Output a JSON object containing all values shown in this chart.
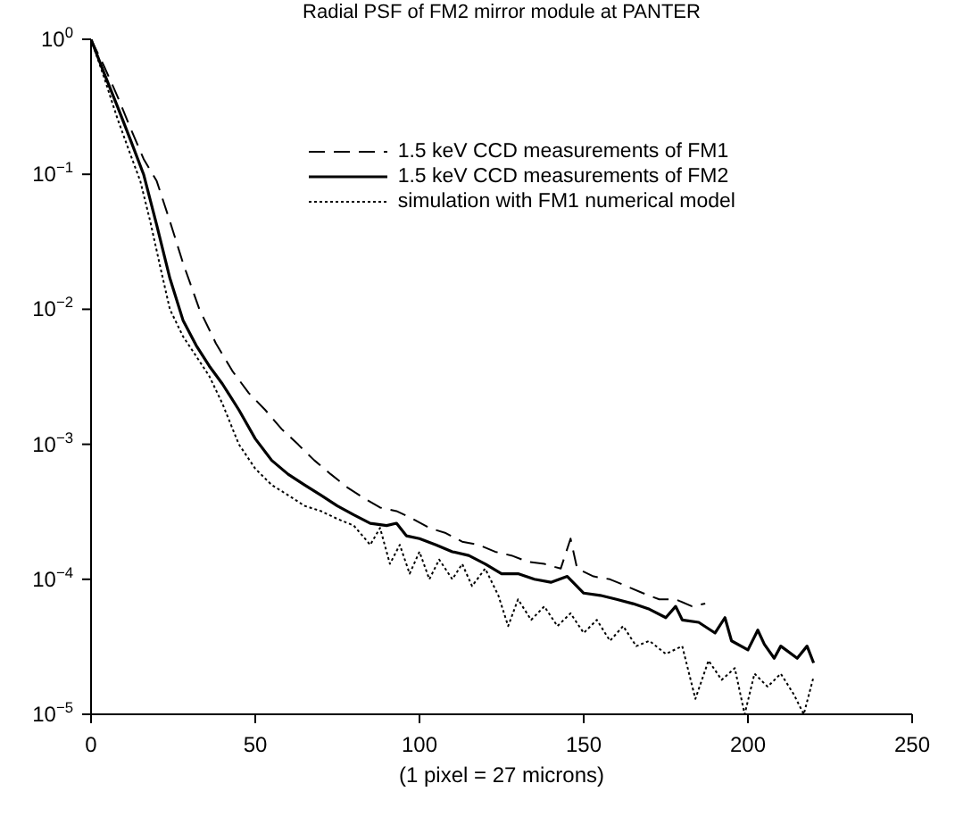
{
  "chart_data": {
    "type": "line",
    "title": "Radial PSF of FM2 mirror module at PANTER",
    "xlabel": "(1 pixel  = 27 microns)",
    "xlim": [
      0,
      250
    ],
    "xticks": [
      0,
      50,
      100,
      150,
      200,
      250
    ],
    "ylim": [
      1e-05,
      1
    ],
    "log": "y",
    "yticks": [
      {
        "value": 1,
        "label": "10$^{0}$"
      },
      {
        "value": 0.1,
        "label": "10$^{−1}$"
      },
      {
        "value": 0.01,
        "label": "10$^{−2}$"
      },
      {
        "value": 0.001,
        "label": "10$^{−3}$"
      },
      {
        "value": 0.0001,
        "label": "10$^{−4}$"
      },
      {
        "value": 1e-05,
        "label": "10$^{−5}$"
      }
    ],
    "grid": false,
    "legend": "top right",
    "marker": "none",
    "series": [
      {
        "name": "1.5 keV CCD measurements of FM1",
        "color": "#000000",
        "line_style": "dashed",
        "x": [
          0,
          4,
          8,
          12,
          16,
          20,
          24,
          28,
          33,
          38,
          43,
          48,
          53,
          58,
          63,
          68,
          73,
          78,
          83,
          88,
          93,
          98,
          103,
          108,
          113,
          118,
          123,
          128,
          133,
          138,
          143,
          146,
          148,
          153,
          158,
          163,
          168,
          173,
          178,
          183,
          187
        ],
        "values": [
          1,
          0.63,
          0.38,
          0.22,
          0.13,
          0.089,
          0.045,
          0.022,
          0.01,
          0.0056,
          0.0035,
          0.0024,
          0.0018,
          0.0013,
          0.001,
          0.00076,
          0.0006,
          0.00048,
          0.0004,
          0.00034,
          0.00032,
          0.00028,
          0.00024,
          0.00022,
          0.00019,
          0.00018,
          0.00016,
          0.00015,
          0.000135,
          0.00013,
          0.00012,
          0.0002,
          0.00012,
          0.000105,
          0.0001,
          8.9e-05,
          7.9e-05,
          7.1e-05,
          7.1e-05,
          6.3e-05,
          6.6e-05
        ]
      },
      {
        "name": "1.5 keV CCD measurements of FM2",
        "color": "#000000",
        "line_style": "solid",
        "x": [
          0,
          4,
          8,
          12,
          16,
          20,
          24,
          28,
          32,
          36,
          40,
          45,
          50,
          55,
          60,
          65,
          70,
          75,
          80,
          85,
          90,
          93,
          96,
          100,
          105,
          110,
          115,
          120,
          125,
          130,
          135,
          140,
          145,
          150,
          155,
          160,
          165,
          170,
          175,
          178,
          180,
          185,
          190,
          193,
          195,
          200,
          203,
          205,
          208,
          210,
          215,
          218,
          220
        ],
        "values": [
          1,
          0.56,
          0.32,
          0.18,
          0.1,
          0.042,
          0.017,
          0.0083,
          0.0054,
          0.0038,
          0.0028,
          0.0018,
          0.0011,
          0.00076,
          0.0006,
          0.0005,
          0.00042,
          0.00035,
          0.0003,
          0.00026,
          0.00025,
          0.00026,
          0.00021,
          0.0002,
          0.00018,
          0.00016,
          0.00015,
          0.00013,
          0.00011,
          0.00011,
          0.0001,
          9.5e-05,
          0.000105,
          7.9e-05,
          7.6e-05,
          7.1e-05,
          6.6e-05,
          6e-05,
          5.2e-05,
          6.3e-05,
          5e-05,
          4.8e-05,
          4e-05,
          5.2e-05,
          3.5e-05,
          3e-05,
          4.2e-05,
          3.3e-05,
          2.6e-05,
          3.2e-05,
          2.6e-05,
          3.2e-05,
          2.4e-05
        ]
      },
      {
        "name": "simulation with FM1 numerical model",
        "color": "#000000",
        "line_style": "dotted",
        "x": [
          0,
          4,
          8,
          12,
          15,
          18,
          21,
          24,
          28,
          32,
          36,
          40,
          45,
          50,
          55,
          60,
          65,
          70,
          75,
          80,
          85,
          88,
          91,
          94,
          97,
          100,
          103,
          106,
          110,
          113,
          116,
          120,
          124,
          127,
          130,
          134,
          138,
          142,
          146,
          150,
          154,
          158,
          162,
          166,
          170,
          175,
          180,
          184,
          188,
          192,
          196,
          199,
          202,
          206,
          210,
          214,
          217,
          220
        ],
        "values": [
          1,
          0.52,
          0.26,
          0.14,
          0.089,
          0.045,
          0.021,
          0.01,
          0.0063,
          0.0045,
          0.0032,
          0.002,
          0.001,
          0.00066,
          0.0005,
          0.00042,
          0.00035,
          0.00032,
          0.00028,
          0.00025,
          0.00018,
          0.00024,
          0.00013,
          0.00018,
          0.00011,
          0.00016,
          0.0001,
          0.00014,
          0.0001,
          0.00013,
          8.9e-05,
          0.00012,
          7.6e-05,
          4.5e-05,
          7.1e-05,
          5e-05,
          6.3e-05,
          4.5e-05,
          5.6e-05,
          4e-05,
          5e-05,
          3.5e-05,
          4.5e-05,
          3.2e-05,
          3.5e-05,
          2.8e-05,
          3.2e-05,
          1.3e-05,
          2.5e-05,
          1.8e-05,
          2.2e-05,
          1e-05,
          2e-05,
          1.6e-05,
          2e-05,
          1.4e-05,
          1e-05,
          1.9e-05
        ]
      }
    ]
  }
}
